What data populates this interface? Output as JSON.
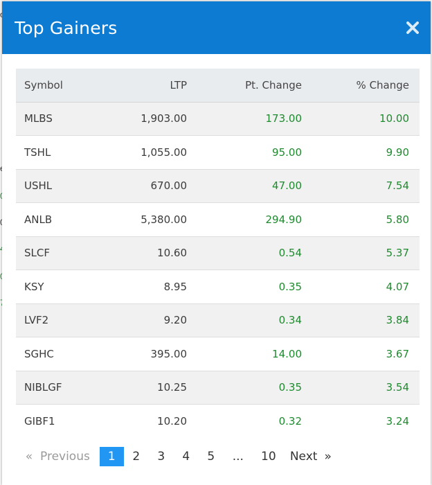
{
  "modal": {
    "title": "Top Gainers"
  },
  "table": {
    "headers": {
      "symbol": "Symbol",
      "ltp": "LTP",
      "pt_change": "Pt. Change",
      "pct_change": "% Change"
    },
    "rows": [
      {
        "symbol": "MLBS",
        "ltp": "1,903.00",
        "pt_change": "173.00",
        "pct_change": "10.00"
      },
      {
        "symbol": "TSHL",
        "ltp": "1,055.00",
        "pt_change": "95.00",
        "pct_change": "9.90"
      },
      {
        "symbol": "USHL",
        "ltp": "670.00",
        "pt_change": "47.00",
        "pct_change": "7.54"
      },
      {
        "symbol": "ANLB",
        "ltp": "5,380.00",
        "pt_change": "294.90",
        "pct_change": "5.80"
      },
      {
        "symbol": "SLCF",
        "ltp": "10.60",
        "pt_change": "0.54",
        "pct_change": "5.37"
      },
      {
        "symbol": "KSY",
        "ltp": "8.95",
        "pt_change": "0.35",
        "pct_change": "4.07"
      },
      {
        "symbol": "LVF2",
        "ltp": "9.20",
        "pt_change": "0.34",
        "pct_change": "3.84"
      },
      {
        "symbol": "SGHC",
        "ltp": "395.00",
        "pt_change": "14.00",
        "pct_change": "3.67"
      },
      {
        "symbol": "NIBLGF",
        "ltp": "10.25",
        "pt_change": "0.35",
        "pct_change": "3.54"
      },
      {
        "symbol": "GIBF1",
        "ltp": "10.20",
        "pt_change": "0.32",
        "pct_change": "3.24"
      }
    ]
  },
  "pagination": {
    "prev_arrow": "«",
    "previous": "Previous",
    "pages": [
      "1",
      "2",
      "3",
      "4",
      "5"
    ],
    "ellipsis": "...",
    "last_page": "10",
    "next": "Next",
    "next_arrow": "»",
    "current_page": "1"
  },
  "background_peek": [
    "o",
    "e",
    "0",
    "0",
    "4",
    "0",
    "7"
  ],
  "colors": {
    "header_bg": "#0d7bd2",
    "positive": "#1e8a2e",
    "active_page": "#2196f3",
    "table_header_bg": "#e9ecef",
    "row_stripe": "#f1f1f1"
  },
  "icons": {
    "close": "close-icon"
  }
}
